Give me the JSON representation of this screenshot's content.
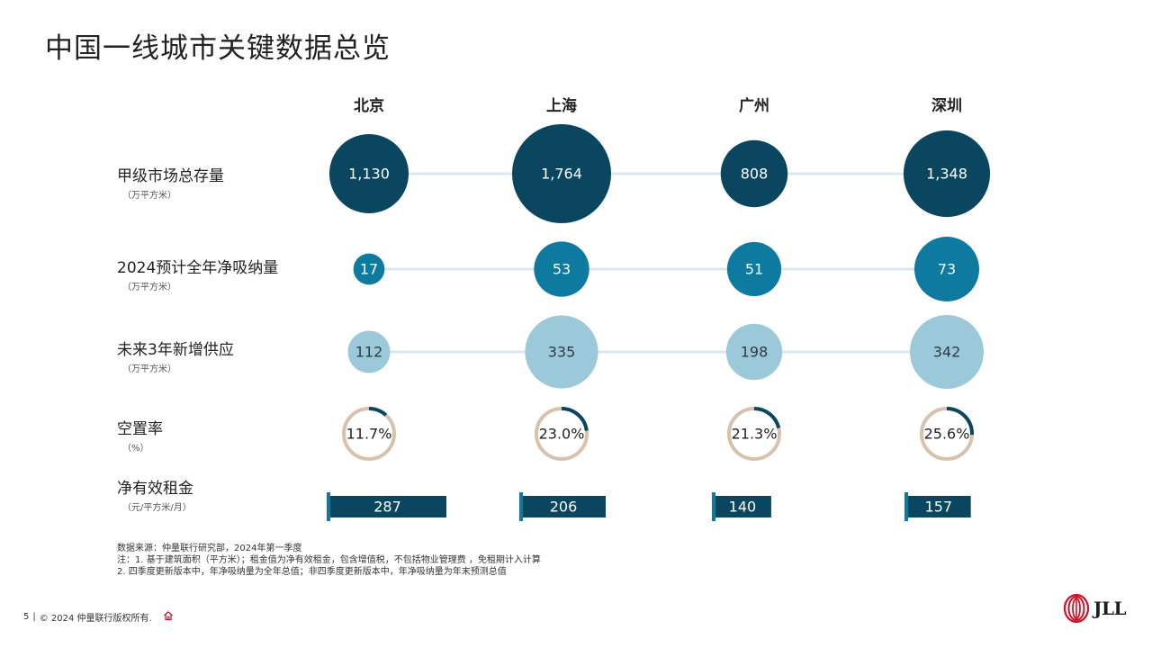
{
  "title": "中国一线城市关键数据总览",
  "colors": {
    "dark_teal": "#0a4660",
    "mid_teal": "#0e7aa0",
    "light_blue": "#9cc9d9",
    "connector": "#d9e8ef",
    "ring_track": "#d9c2ad",
    "ring_fill": "#0a4660",
    "bar_fill": "#0a4660",
    "bar_marker": "#0e7aa0",
    "logo_red": "#d0112b"
  },
  "chart_data": {
    "type": "table",
    "cities": [
      "北京",
      "上海",
      "广州",
      "深圳"
    ],
    "rows": [
      {
        "label": "甲级市场总存量",
        "unit": "（万平方米）",
        "style": "bubble",
        "display": [
          "1,130",
          "1,764",
          "808",
          "1,348"
        ],
        "values": [
          1130,
          1764,
          808,
          1348
        ]
      },
      {
        "label": "2024预计全年净吸纳量",
        "unit": "（万平方米）",
        "style": "bubble",
        "display": [
          "17",
          "53",
          "51",
          "73"
        ],
        "values": [
          17,
          53,
          51,
          73
        ]
      },
      {
        "label": "未来3年新增供应",
        "unit": "（万平方米）",
        "style": "bubble",
        "display": [
          "112",
          "335",
          "198",
          "342"
        ],
        "values": [
          112,
          335,
          198,
          342
        ]
      },
      {
        "label": "空置率",
        "unit": "（%）",
        "style": "donut",
        "display": [
          "11.7%",
          "23.0%",
          "21.3%",
          "25.6%"
        ],
        "values": [
          11.7,
          23.0,
          21.3,
          25.6
        ]
      },
      {
        "label": "净有效租金",
        "unit": "（元/平方米/月）",
        "style": "bar",
        "display": [
          "287",
          "206",
          "140",
          "157"
        ],
        "values": [
          287,
          206,
          140,
          157
        ]
      }
    ]
  },
  "notes": [
    "数据来源：仲量联行研究部，2024年第一季度",
    "注：1. 基于建筑面积（平方米）；租金值为净有效租金，包含增值税，不包括物业管理费 ，免租期计入计算",
    "2. 四季度更新版本中，年净吸纳量为全年总值；非四季度更新版本中，年净吸纳量为年末预测总值"
  ],
  "footer": {
    "page": "5",
    "sep": "|",
    "copyright": "© 2024 仲量联行版权所有."
  },
  "logo": {
    "text": "JLL"
  }
}
